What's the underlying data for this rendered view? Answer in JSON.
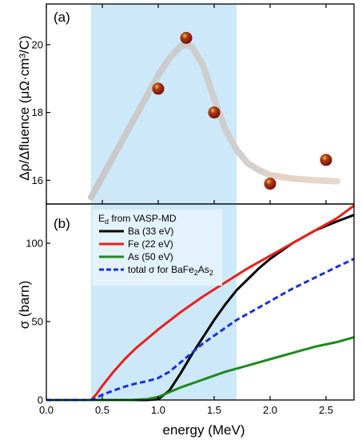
{
  "chart_data": [
    {
      "type": "scatter",
      "panel": "(a)",
      "ylabel_main": "Δρ/Δfluence (μΩ·cm³/C)",
      "xlim": [
        0,
        2.75
      ],
      "ylim": [
        15.3,
        21.2
      ],
      "xticks": [
        0.0,
        0.5,
        1.0,
        1.5,
        2.0,
        2.5
      ],
      "yticks": [
        16,
        18,
        20
      ],
      "highlight_band": {
        "x0": 0.4,
        "x1": 1.7,
        "color": "#cde8f8"
      },
      "points": [
        {
          "x": 1.0,
          "y": 18.7
        },
        {
          "x": 1.25,
          "y": 20.2
        },
        {
          "x": 1.5,
          "y": 18.0
        },
        {
          "x": 2.0,
          "y": 15.9
        },
        {
          "x": 2.5,
          "y": 16.6
        }
      ],
      "guide_curve": {
        "x": [
          0.4,
          0.6,
          0.8,
          1.0,
          1.1,
          1.2,
          1.25,
          1.3,
          1.4,
          1.5,
          1.6,
          1.7,
          1.8,
          1.9,
          2.0,
          2.2,
          2.4,
          2.6
        ],
        "y": [
          15.5,
          16.7,
          17.9,
          19.1,
          19.6,
          19.95,
          20.0,
          19.95,
          19.4,
          18.4,
          17.5,
          16.9,
          16.5,
          16.3,
          16.15,
          16.05,
          16.0,
          15.97
        ]
      },
      "colors": {
        "point": "#8b1a10",
        "point_highlight": "#e6b030",
        "guide": "#c9c9c9",
        "guide_tail": "#e6d5c8"
      }
    },
    {
      "type": "line",
      "panel": "(b)",
      "xlabel": "energy (MeV)",
      "ylabel_main": "σ (barn)",
      "xlim": [
        0,
        2.75
      ],
      "ylim": [
        0,
        125
      ],
      "xticks": [
        0.0,
        0.5,
        1.0,
        1.5,
        2.0,
        2.5
      ],
      "xtick_labels": [
        "0.0",
        "0.5",
        "1.0",
        "1.5",
        "2.0",
        "2.5"
      ],
      "yticks": [
        0,
        50,
        100
      ],
      "highlight_band": {
        "x0": 0.4,
        "x1": 1.7,
        "color": "#cde8f8"
      },
      "legend": {
        "placement": "top-left",
        "title": "E",
        "title_sub": "d",
        "title_rest": " from VASP-MD"
      },
      "series": [
        {
          "name": "Ba (33 eV)",
          "color": "#000000",
          "dash": false,
          "x": [
            0.0,
            0.9,
            1.0,
            1.1,
            1.2,
            1.3,
            1.4,
            1.5,
            1.6,
            1.7,
            1.8,
            1.9,
            2.0,
            2.1,
            2.2,
            2.3,
            2.4,
            2.5,
            2.6,
            2.75
          ],
          "y": [
            0,
            0,
            0.5,
            6,
            17,
            29,
            40,
            51,
            61,
            70,
            77,
            84,
            90,
            95,
            100,
            104,
            108,
            111,
            114,
            118
          ]
        },
        {
          "name": "Fe (22 eV)",
          "color": "#e8201a",
          "dash": false,
          "x": [
            0.0,
            0.4,
            0.45,
            0.5,
            0.6,
            0.7,
            0.8,
            0.9,
            1.0,
            1.2,
            1.4,
            1.6,
            1.8,
            2.0,
            2.2,
            2.4,
            2.6,
            2.75
          ],
          "y": [
            0,
            0,
            4,
            9,
            18,
            26,
            33,
            39,
            45,
            56,
            66,
            75,
            84,
            92,
            100,
            108,
            116,
            124
          ]
        },
        {
          "name": "As (50 eV)",
          "color": "#1f8a1f",
          "dash": false,
          "x": [
            0.0,
            0.75,
            0.9,
            1.0,
            1.1,
            1.2,
            1.4,
            1.6,
            1.8,
            2.0,
            2.2,
            2.4,
            2.6,
            2.75
          ],
          "y": [
            0,
            0,
            0.5,
            2,
            5,
            8,
            13,
            18,
            22,
            26,
            30,
            34,
            37,
            40
          ]
        },
        {
          "name": "total σ for BaFe",
          "name_sub": "2",
          "name_mid": "As",
          "name_sub2": "2",
          "color": "#1a2ee0",
          "dash": true,
          "x": [
            0.0,
            0.4,
            0.45,
            0.5,
            0.6,
            0.7,
            0.8,
            0.9,
            1.0,
            1.1,
            1.2,
            1.3,
            1.4,
            1.5,
            1.6,
            1.7,
            1.8,
            2.0,
            2.2,
            2.4,
            2.6,
            2.75
          ],
          "y": [
            0,
            0,
            1.5,
            3.3,
            6,
            8.5,
            10.5,
            12,
            14,
            18,
            24,
            30,
            36,
            41,
            46,
            51,
            55,
            63,
            71,
            78,
            85,
            90
          ]
        }
      ]
    }
  ]
}
